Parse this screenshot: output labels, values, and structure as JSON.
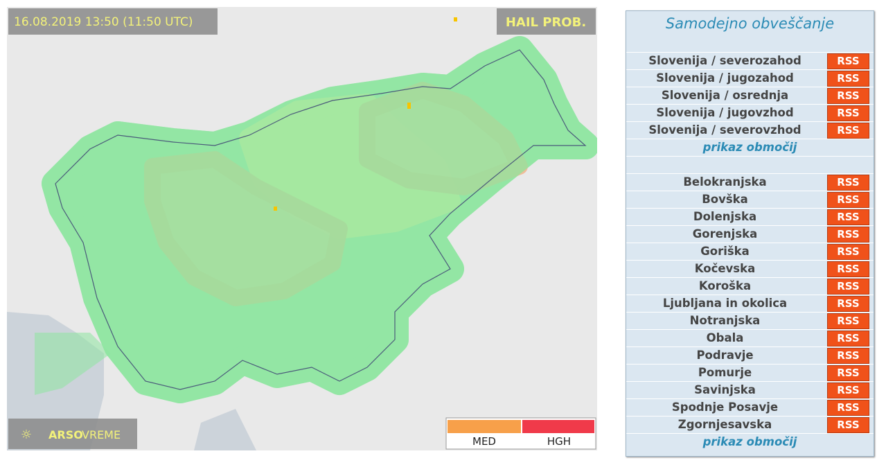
{
  "map": {
    "timestamp": "16.08.2019 13:50 (11:50 UTC)",
    "product": "HAIL PROB.",
    "logo": {
      "brand": "ARSO",
      "suffix": "VREME"
    },
    "legend": [
      "MED",
      "HGH"
    ]
  },
  "sidebar": {
    "title": "Samodejno obveščanje",
    "groups": [
      {
        "rows": [
          {
            "label": "Slovenija / severozahod",
            "rss": "RSS"
          },
          {
            "label": "Slovenija / jugozahod",
            "rss": "RSS"
          },
          {
            "label": "Slovenija / osrednja",
            "rss": "RSS"
          },
          {
            "label": "Slovenija / jugovzhod",
            "rss": "RSS"
          },
          {
            "label": "Slovenija / severovzhod",
            "rss": "RSS"
          }
        ],
        "link": "prikaz območij"
      },
      {
        "rows": [
          {
            "label": "Belokranjska",
            "rss": "RSS"
          },
          {
            "label": "Bovška",
            "rss": "RSS"
          },
          {
            "label": "Dolenjska",
            "rss": "RSS"
          },
          {
            "label": "Gorenjska",
            "rss": "RSS"
          },
          {
            "label": "Goriška",
            "rss": "RSS"
          },
          {
            "label": "Kočevska",
            "rss": "RSS"
          },
          {
            "label": "Koroška",
            "rss": "RSS"
          },
          {
            "label": "Ljubljana in okolica",
            "rss": "RSS"
          },
          {
            "label": "Notranjska",
            "rss": "RSS"
          },
          {
            "label": "Obala",
            "rss": "RSS"
          },
          {
            "label": "Podravje",
            "rss": "RSS"
          },
          {
            "label": "Pomurje",
            "rss": "RSS"
          },
          {
            "label": "Savinjska",
            "rss": "RSS"
          },
          {
            "label": "Spodnje Posavje",
            "rss": "RSS"
          },
          {
            "label": "Zgornjesavska",
            "rss": "RSS"
          }
        ],
        "link": "prikaz območij"
      }
    ]
  }
}
